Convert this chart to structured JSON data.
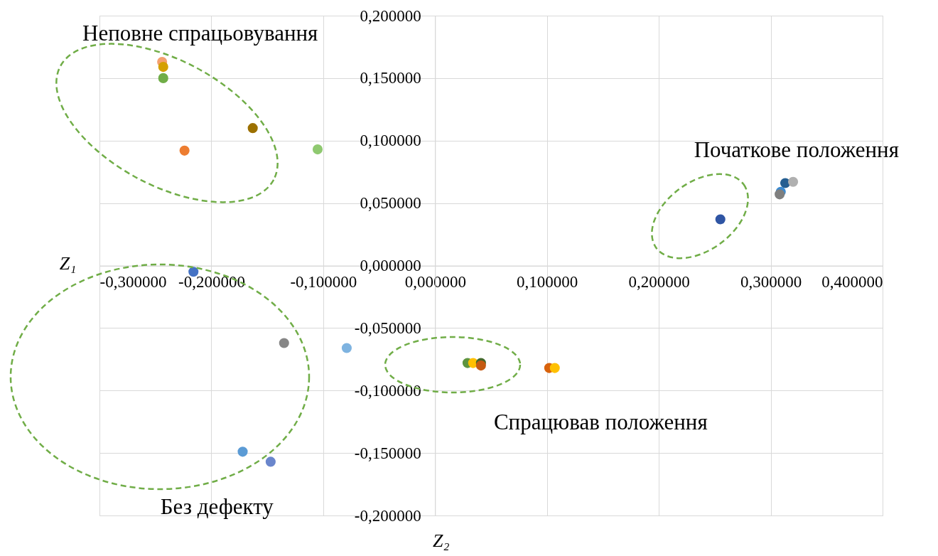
{
  "chart_data": {
    "type": "scatter",
    "xlabel": "Z₂",
    "ylabel": "Z₁",
    "x": [
      -0.244,
      -0.243,
      -0.243,
      -0.163,
      -0.224,
      -0.105,
      0.255,
      0.313,
      0.32,
      0.309,
      0.308,
      -0.216,
      -0.135,
      -0.079,
      -0.172,
      -0.147,
      0.029,
      0.034,
      0.041,
      0.041,
      0.102,
      0.107
    ],
    "values": [
      0.163,
      0.159,
      0.15,
      0.11,
      0.092,
      0.093,
      0.037,
      0.066,
      0.067,
      0.059,
      0.057,
      -0.005,
      -0.062,
      -0.066,
      -0.149,
      -0.157,
      -0.078,
      -0.078,
      -0.078,
      -0.08,
      -0.082,
      -0.082
    ],
    "colors": [
      "#f4a070",
      "#d4a000",
      "#70ad47",
      "#9c7000",
      "#ed7d31",
      "#8fc970",
      "#2f55a4",
      "#255e91",
      "#b0b0b0",
      "#3c8ad0",
      "#7f7f7f",
      "#4472c4",
      "#868686",
      "#7eb3e0",
      "#5b9bd5",
      "#6a86cc",
      "#5e9440",
      "#ffc000",
      "#43682b",
      "#c55a11",
      "#d8620c",
      "#ffc000"
    ],
    "marker": "circle",
    "grid": true,
    "xlim": [
      -0.3,
      0.4
    ],
    "ylim": [
      -0.2,
      0.2
    ],
    "xticks": [
      {
        "value": -0.3,
        "label": "-0,300000"
      },
      {
        "value": -0.2,
        "label": "-0,200000"
      },
      {
        "value": -0.1,
        "label": "-0,100000"
      },
      {
        "value": 0,
        "label": "0,000000"
      },
      {
        "value": 0.1,
        "label": "0,100000"
      },
      {
        "value": 0.2,
        "label": "0,200000"
      },
      {
        "value": 0.3,
        "label": "0,300000"
      },
      {
        "value": 0.4,
        "label": "0,400000"
      }
    ],
    "yticks": [
      {
        "value": -0.2,
        "label": "-0,200000"
      },
      {
        "value": -0.15,
        "label": "-0,150000"
      },
      {
        "value": -0.1,
        "label": "-0,100000"
      },
      {
        "value": -0.05,
        "label": "-0,050000"
      },
      {
        "value": 0,
        "label": "0,000000"
      },
      {
        "value": 0.05,
        "label": "0,050000"
      },
      {
        "value": 0.1,
        "label": "0,100000"
      },
      {
        "value": 0.15,
        "label": "0,150000"
      },
      {
        "value": 0.2,
        "label": "0,200000"
      }
    ],
    "annotations": [
      "Неповне спрацьовування",
      "Початкове положення",
      "Спрацював положення",
      "Без дефекту"
    ]
  }
}
